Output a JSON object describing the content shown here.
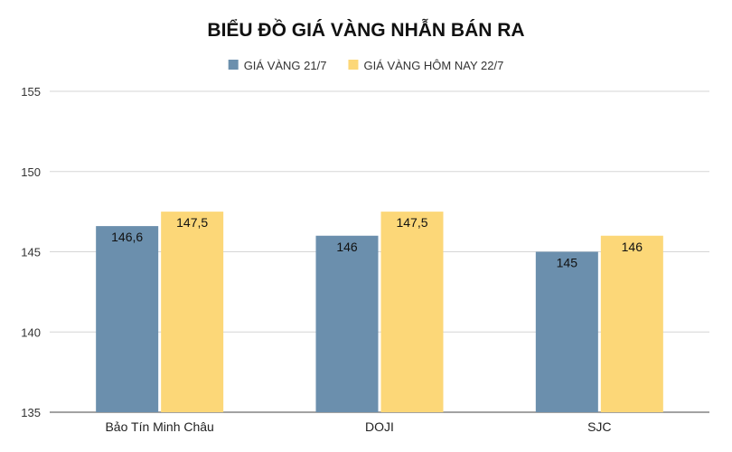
{
  "chart_data": {
    "type": "bar",
    "title": "BIỂU ĐỒ GIÁ VÀNG NHẪN BÁN RA",
    "categories": [
      "Bảo Tín Minh Châu",
      "DOJI",
      "SJC"
    ],
    "series": [
      {
        "name": "GIÁ VÀNG 21/7",
        "values": [
          146.6,
          146,
          145
        ],
        "labels": [
          "146,6",
          "146",
          "145"
        ],
        "color": "#6b8fad"
      },
      {
        "name": "GIÁ VÀNG HÔM NAY 22/7",
        "values": [
          147.5,
          147.5,
          146
        ],
        "labels": [
          "147,5",
          "147,5",
          "146"
        ],
        "color": "#fcd778"
      }
    ],
    "ylim": [
      135,
      155
    ],
    "yticks": [
      "135",
      "140",
      "145",
      "150",
      "155"
    ],
    "grid": true,
    "legend_position": "top"
  }
}
